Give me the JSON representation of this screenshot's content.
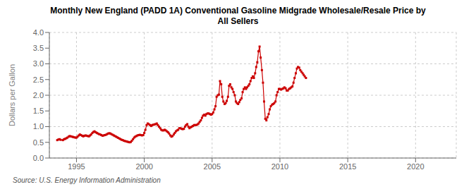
{
  "chart_data": {
    "type": "line",
    "title": "Monthly New England (PADD 1A) Conventional Gasoline Midgrade Wholesale/Resale Price by\nAll Sellers",
    "y_label": "Dollars per Gallon",
    "annotations": [
      "Source: U.S. Energy Information Administration"
    ],
    "color": "#cc0000",
    "marker": "square",
    "line_style": "solid",
    "grid": true,
    "xlim": [
      1993.0,
      2023.0
    ],
    "ylim": [
      0.0,
      4.0
    ],
    "xticks": [
      1995,
      2000,
      2005,
      2010,
      2015,
      2020
    ],
    "yticks": [
      {
        "value": 0.0,
        "label": "0.0"
      },
      {
        "value": 0.5,
        "label": "0.5"
      },
      {
        "value": 1.0,
        "label": "1.0"
      },
      {
        "value": 1.5,
        "label": "1.5"
      },
      {
        "value": 2.0,
        "label": "2.0"
      },
      {
        "value": 2.5,
        "label": "2.5"
      },
      {
        "value": 3.0,
        "label": "3.0"
      },
      {
        "value": 3.5,
        "label": "3.5"
      },
      {
        "value": 4.0,
        "label": "4.0"
      }
    ],
    "x": [
      1993.58,
      1993.67,
      1993.75,
      1993.83,
      1994.0,
      1994.08,
      1994.17,
      1994.25,
      1994.33,
      1994.42,
      1994.5,
      1994.58,
      1994.67,
      1994.75,
      1994.83,
      1994.92,
      1995.0,
      1995.08,
      1995.17,
      1995.25,
      1995.33,
      1995.42,
      1995.5,
      1995.58,
      1995.67,
      1995.75,
      1995.83,
      1995.92,
      1996.0,
      1996.08,
      1996.17,
      1996.25,
      1996.33,
      1996.42,
      1996.5,
      1996.58,
      1996.67,
      1996.75,
      1996.83,
      1996.92,
      1997.0,
      1997.08,
      1997.17,
      1997.25,
      1997.33,
      1997.42,
      1997.5,
      1997.58,
      1997.67,
      1997.75,
      1997.83,
      1997.92,
      1998.0,
      1998.08,
      1998.17,
      1998.25,
      1998.33,
      1998.42,
      1998.5,
      1998.58,
      1998.67,
      1998.75,
      1998.83,
      1998.92,
      1999.0,
      1999.08,
      1999.17,
      1999.25,
      1999.33,
      1999.42,
      1999.5,
      1999.58,
      1999.67,
      1999.75,
      1999.83,
      1999.92,
      2000.0,
      2000.08,
      2000.17,
      2000.25,
      2000.33,
      2000.42,
      2000.5,
      2000.58,
      2000.67,
      2000.75,
      2000.83,
      2000.92,
      2001.0,
      2001.08,
      2001.17,
      2001.25,
      2001.33,
      2001.42,
      2001.5,
      2001.58,
      2001.67,
      2001.75,
      2001.83,
      2001.92,
      2002.0,
      2002.08,
      2002.17,
      2002.25,
      2002.33,
      2002.42,
      2002.5,
      2002.58,
      2002.67,
      2002.75,
      2002.83,
      2002.92,
      2003.0,
      2003.08,
      2003.17,
      2003.25,
      2003.33,
      2003.42,
      2003.5,
      2003.58,
      2003.67,
      2003.75,
      2003.83,
      2003.92,
      2004.0,
      2004.08,
      2004.17,
      2004.25,
      2004.33,
      2004.42,
      2004.5,
      2004.58,
      2004.67,
      2004.75,
      2004.83,
      2004.92,
      2005.0,
      2005.08,
      2005.17,
      2005.25,
      2005.33,
      2005.42,
      2005.5,
      2005.58,
      2005.67,
      2005.75,
      2005.83,
      2005.92,
      2006.0,
      2006.08,
      2006.17,
      2006.25,
      2006.33,
      2006.42,
      2006.5,
      2006.58,
      2006.67,
      2006.75,
      2006.83,
      2006.92,
      2007.0,
      2007.08,
      2007.17,
      2007.25,
      2007.33,
      2007.42,
      2007.5,
      2007.58,
      2007.67,
      2007.75,
      2007.83,
      2007.92,
      2008.0,
      2008.08,
      2008.17,
      2008.25,
      2008.33,
      2008.42,
      2008.5,
      2008.58,
      2008.67,
      2008.75,
      2008.83,
      2008.92,
      2009.0,
      2009.08,
      2009.17,
      2009.25,
      2009.33,
      2009.42,
      2009.5,
      2009.58,
      2009.67,
      2009.75,
      2009.83,
      2009.92,
      2010.0,
      2010.08,
      2010.17,
      2010.25,
      2010.33,
      2010.42,
      2010.5,
      2010.58,
      2010.67,
      2010.75,
      2010.83,
      2010.92,
      2011.0,
      2011.08,
      2011.17,
      2011.25,
      2011.33,
      2011.42,
      2011.5,
      2011.58,
      2011.67,
      2011.75,
      2011.83,
      2011.92
    ],
    "values": [
      0.57,
      0.59,
      0.6,
      0.58,
      0.57,
      0.6,
      0.61,
      0.63,
      0.65,
      0.68,
      0.7,
      0.69,
      0.68,
      0.67,
      0.66,
      0.65,
      0.65,
      0.68,
      0.72,
      0.75,
      0.73,
      0.71,
      0.69,
      0.71,
      0.72,
      0.71,
      0.7,
      0.69,
      0.72,
      0.75,
      0.8,
      0.83,
      0.85,
      0.82,
      0.8,
      0.78,
      0.76,
      0.75,
      0.73,
      0.71,
      0.72,
      0.73,
      0.74,
      0.76,
      0.78,
      0.79,
      0.78,
      0.76,
      0.74,
      0.72,
      0.7,
      0.68,
      0.66,
      0.64,
      0.62,
      0.6,
      0.58,
      0.57,
      0.55,
      0.54,
      0.53,
      0.52,
      0.51,
      0.5,
      0.51,
      0.55,
      0.6,
      0.65,
      0.68,
      0.7,
      0.72,
      0.73,
      0.74,
      0.73,
      0.72,
      0.73,
      0.8,
      0.9,
      1.05,
      1.1,
      1.08,
      1.05,
      1.02,
      1.05,
      1.06,
      1.07,
      1.08,
      1.1,
      1.05,
      1.0,
      0.95,
      0.9,
      0.88,
      0.88,
      0.9,
      0.88,
      0.85,
      0.82,
      0.78,
      0.72,
      0.68,
      0.7,
      0.75,
      0.8,
      0.85,
      0.88,
      0.9,
      0.95,
      0.95,
      0.93,
      0.92,
      0.93,
      1.0,
      1.05,
      1.08,
      1.0,
      0.95,
      0.98,
      1.0,
      1.02,
      1.05,
      1.05,
      1.05,
      1.07,
      1.1,
      1.15,
      1.2,
      1.28,
      1.35,
      1.38,
      1.35,
      1.4,
      1.42,
      1.42,
      1.4,
      1.38,
      1.4,
      1.45,
      1.55,
      1.65,
      1.95,
      2.0,
      2.02,
      2.45,
      2.35,
      1.95,
      1.8,
      1.72,
      1.75,
      1.82,
      1.95,
      2.3,
      2.35,
      2.25,
      2.2,
      2.1,
      2.0,
      1.8,
      1.75,
      1.72,
      1.78,
      1.85,
      1.9,
      2.1,
      2.2,
      2.25,
      2.2,
      2.25,
      2.3,
      2.35,
      2.45,
      2.55,
      2.6,
      2.55,
      2.7,
      2.9,
      3.05,
      3.4,
      3.55,
      3.2,
      2.8,
      2.4,
      1.8,
      1.25,
      1.2,
      1.3,
      1.4,
      1.55,
      1.65,
      1.7,
      1.72,
      1.75,
      1.8,
      2.0,
      2.1,
      2.2,
      2.2,
      2.18,
      2.2,
      2.22,
      2.25,
      2.22,
      2.15,
      2.15,
      2.2,
      2.22,
      2.25,
      2.28,
      2.4,
      2.55,
      2.7,
      2.85,
      2.9,
      2.88,
      2.8,
      2.75,
      2.7,
      2.65,
      2.6,
      2.55
    ]
  }
}
